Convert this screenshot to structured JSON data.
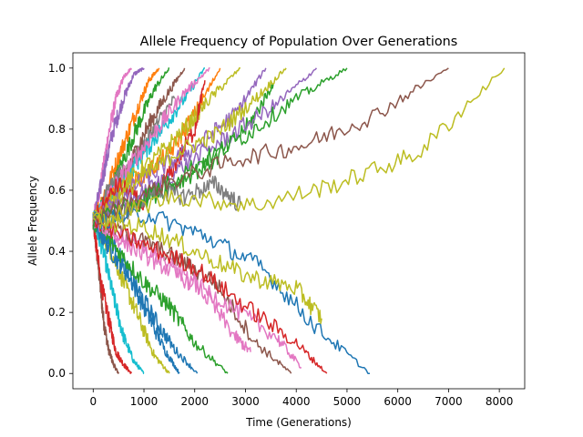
{
  "chart_data": {
    "type": "line",
    "title": "Allele Frequency of Population Over Generations",
    "xlabel": "Time (Generations)",
    "ylabel": "Allele Frequency",
    "xlim": [
      -400,
      8500
    ],
    "ylim": [
      -0.05,
      1.05
    ],
    "xticks": [
      0,
      1000,
      2000,
      3000,
      4000,
      5000,
      6000,
      7000,
      8000
    ],
    "yticks": [
      0.0,
      0.2,
      0.4,
      0.6,
      0.8,
      1.0
    ],
    "grid": false,
    "legend": "none",
    "palette": [
      "#1f77b4",
      "#ff7f0e",
      "#2ca02c",
      "#d62728",
      "#9467bd",
      "#8c564b",
      "#e377c2",
      "#7f7f7f",
      "#bcbd22",
      "#17becf"
    ],
    "series": [
      {
        "color": "#8c564b",
        "x": [
          0,
          100,
          200,
          300,
          400,
          500
        ],
        "y": [
          0.5,
          0.35,
          0.18,
          0.08,
          0.03,
          0.0
        ]
      },
      {
        "color": "#e377c2",
        "x": [
          0,
          150,
          300,
          450,
          600,
          750
        ],
        "y": [
          0.5,
          0.62,
          0.78,
          0.9,
          0.97,
          1.0
        ]
      },
      {
        "color": "#d62728",
        "x": [
          0,
          150,
          300,
          450,
          600,
          750
        ],
        "y": [
          0.5,
          0.3,
          0.18,
          0.07,
          0.03,
          0.0
        ]
      },
      {
        "color": "#9467bd",
        "x": [
          0,
          200,
          400,
          600,
          800,
          1000
        ],
        "y": [
          0.5,
          0.65,
          0.8,
          0.9,
          0.98,
          1.0
        ]
      },
      {
        "color": "#17becf",
        "x": [
          0,
          200,
          400,
          600,
          800,
          1000
        ],
        "y": [
          0.5,
          0.4,
          0.25,
          0.12,
          0.04,
          0.0
        ]
      },
      {
        "color": "#ff7f0e",
        "x": [
          0,
          300,
          600,
          900,
          1100,
          1300
        ],
        "y": [
          0.5,
          0.62,
          0.75,
          0.88,
          0.96,
          1.0
        ]
      },
      {
        "color": "#bcbd22",
        "x": [
          0,
          300,
          600,
          900,
          1200,
          1500
        ],
        "y": [
          0.5,
          0.42,
          0.3,
          0.18,
          0.06,
          0.0
        ]
      },
      {
        "color": "#2ca02c",
        "x": [
          0,
          300,
          600,
          900,
          1200,
          1500
        ],
        "y": [
          0.5,
          0.58,
          0.7,
          0.82,
          0.93,
          1.0
        ]
      },
      {
        "color": "#1f77b4",
        "x": [
          0,
          350,
          700,
          1050,
          1400,
          1700
        ],
        "y": [
          0.5,
          0.4,
          0.32,
          0.2,
          0.08,
          0.0
        ]
      },
      {
        "color": "#7f7f7f",
        "x": [
          0,
          300,
          600,
          900,
          1200,
          1600
        ],
        "y": [
          0.5,
          0.6,
          0.66,
          0.72,
          0.8,
          0.9
        ]
      },
      {
        "color": "#8c564b",
        "x": [
          0,
          350,
          700,
          1050,
          1400,
          1800
        ],
        "y": [
          0.5,
          0.55,
          0.68,
          0.8,
          0.9,
          1.0
        ]
      },
      {
        "color": "#1f77b4",
        "x": [
          0,
          400,
          800,
          1200,
          1600,
          2050
        ],
        "y": [
          0.5,
          0.42,
          0.3,
          0.18,
          0.08,
          0.0
        ]
      },
      {
        "color": "#17becf",
        "x": [
          0,
          450,
          900,
          1350,
          1800,
          2200
        ],
        "y": [
          0.5,
          0.6,
          0.7,
          0.8,
          0.9,
          1.0
        ]
      },
      {
        "color": "#e377c2",
        "x": [
          0,
          450,
          900,
          1350,
          1800,
          2300
        ],
        "y": [
          0.5,
          0.62,
          0.72,
          0.82,
          0.92,
          1.0
        ]
      },
      {
        "color": "#2ca02c",
        "x": [
          0,
          500,
          1000,
          1500,
          2000,
          2650
        ],
        "y": [
          0.5,
          0.4,
          0.3,
          0.22,
          0.1,
          0.0
        ]
      },
      {
        "color": "#ff7f0e",
        "x": [
          0,
          500,
          1000,
          1500,
          2000,
          2500
        ],
        "y": [
          0.5,
          0.6,
          0.65,
          0.72,
          0.85,
          1.0
        ]
      },
      {
        "color": "#bcbd22",
        "x": [
          0,
          600,
          1200,
          1800,
          2300,
          2900
        ],
        "y": [
          0.5,
          0.62,
          0.7,
          0.8,
          0.9,
          1.0
        ]
      },
      {
        "color": "#d62728",
        "x": [
          0,
          500,
          1000,
          1500,
          2000,
          2200
        ],
        "y": [
          0.5,
          0.62,
          0.55,
          0.65,
          0.8,
          0.96
        ]
      },
      {
        "color": "#9467bd",
        "x": [
          0,
          700,
          1400,
          2100,
          2800,
          3400
        ],
        "y": [
          0.5,
          0.6,
          0.68,
          0.75,
          0.85,
          1.0
        ]
      },
      {
        "color": "#e377c2",
        "x": [
          0,
          700,
          1400,
          2100,
          2800,
          3100
        ],
        "y": [
          0.5,
          0.42,
          0.35,
          0.28,
          0.12,
          0.07
        ]
      },
      {
        "color": "#2ca02c",
        "x": [
          0,
          800,
          1600,
          2400,
          3100,
          3550
        ],
        "y": [
          0.5,
          0.55,
          0.62,
          0.7,
          0.82,
          0.95
        ]
      },
      {
        "color": "#bcbd22",
        "x": [
          0,
          800,
          1600,
          2400,
          3200,
          3800
        ],
        "y": [
          0.5,
          0.62,
          0.72,
          0.78,
          0.9,
          1.0
        ]
      },
      {
        "color": "#8c564b",
        "x": [
          0,
          800,
          1600,
          2400,
          3200,
          3900
        ],
        "y": [
          0.5,
          0.45,
          0.38,
          0.3,
          0.1,
          0.0
        ]
      },
      {
        "color": "#7f7f7f",
        "x": [
          0,
          600,
          1200,
          1800,
          2400,
          2900
        ],
        "y": [
          0.5,
          0.52,
          0.6,
          0.58,
          0.62,
          0.55
        ]
      },
      {
        "color": "#e377c2",
        "x": [
          0,
          900,
          1800,
          2700,
          3600,
          4100
        ],
        "y": [
          0.5,
          0.42,
          0.32,
          0.22,
          0.12,
          0.02
        ]
      },
      {
        "color": "#9467bd",
        "x": [
          0,
          900,
          1800,
          2700,
          3600,
          4400
        ],
        "y": [
          0.5,
          0.58,
          0.68,
          0.78,
          0.88,
          1.0
        ]
      },
      {
        "color": "#d62728",
        "x": [
          0,
          1000,
          2000,
          3000,
          4000,
          4600
        ],
        "y": [
          0.5,
          0.42,
          0.35,
          0.22,
          0.1,
          0.0
        ]
      },
      {
        "color": "#2ca02c",
        "x": [
          0,
          1000,
          2000,
          3000,
          4000,
          5000
        ],
        "y": [
          0.5,
          0.58,
          0.68,
          0.78,
          0.9,
          1.0
        ]
      },
      {
        "color": "#1f77b4",
        "x": [
          0,
          1100,
          2200,
          3300,
          4400,
          5450
        ],
        "y": [
          0.5,
          0.52,
          0.45,
          0.35,
          0.15,
          0.0
        ]
      },
      {
        "color": "#bcbd22",
        "x": [
          0,
          1000,
          2000,
          3000,
          4000,
          4500
        ],
        "y": [
          0.5,
          0.48,
          0.4,
          0.32,
          0.28,
          0.18
        ]
      },
      {
        "color": "#8c564b",
        "x": [
          0,
          1400,
          2800,
          4200,
          5600,
          7000
        ],
        "y": [
          0.5,
          0.62,
          0.7,
          0.75,
          0.85,
          1.0
        ]
      },
      {
        "color": "#bcbd22",
        "x": [
          0,
          1600,
          3200,
          4800,
          6400,
          8100
        ],
        "y": [
          0.5,
          0.58,
          0.55,
          0.62,
          0.72,
          1.0
        ]
      }
    ]
  }
}
